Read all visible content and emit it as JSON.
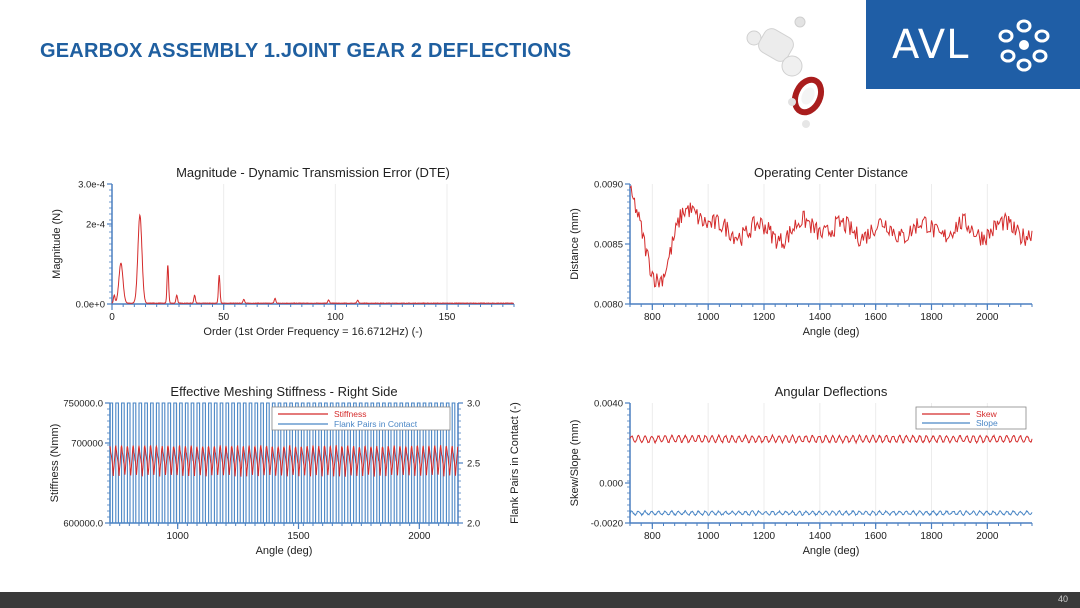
{
  "slide": {
    "title": "GEARBOX ASSEMBLY 1.JOINT GEAR 2 DEFLECTIONS",
    "logo_text": "AVL",
    "page_number": "40"
  },
  "colors": {
    "brand_blue": "#1f5ea6",
    "title_blue": "#1f5fa0",
    "red": "#d42b2b",
    "blue": "#4a86c5",
    "axis": "#4a7fc1"
  },
  "chart_data": [
    {
      "id": "dte",
      "type": "line",
      "title": "Magnitude - Dynamic Transmission Error (DTE)",
      "xlabel": "Order (1st Order Frequency = 16.6712Hz) (-)",
      "ylabel": "Magnitude (N)",
      "xlim": [
        0,
        180
      ],
      "ylim": [
        0,
        0.0003
      ],
      "xticks": [
        0,
        50,
        100,
        150
      ],
      "xtick_labels": [
        "0",
        "50",
        "100",
        "150"
      ],
      "yticks": [
        0,
        0.0002,
        0.0003
      ],
      "ytick_labels": [
        "0.0e+0",
        "2e-4",
        "3.0e-4"
      ],
      "peaks": [
        {
          "x": 1,
          "y": 2e-05
        },
        {
          "x": 4,
          "y": 0.0001
        },
        {
          "x": 12.5,
          "y": 0.00022
        },
        {
          "x": 25,
          "y": 9.5e-05
        },
        {
          "x": 29,
          "y": 2e-05
        },
        {
          "x": 37,
          "y": 2e-05
        },
        {
          "x": 48,
          "y": 7e-05
        },
        {
          "x": 59,
          "y": 1e-05
        },
        {
          "x": 73,
          "y": 1.2e-05
        },
        {
          "x": 97,
          "y": 8e-06
        },
        {
          "x": 110,
          "y": 7e-06
        }
      ]
    },
    {
      "id": "ocd",
      "type": "line",
      "title": "Operating Center Distance",
      "xlabel": "Angle (deg)",
      "ylabel": "Distance (mm)",
      "xlim": [
        720,
        2160
      ],
      "ylim": [
        0.008,
        0.009
      ],
      "xticks": [
        800,
        1000,
        1200,
        1400,
        1600,
        1800,
        2000
      ],
      "xtick_labels": [
        "800",
        "1000",
        "1200",
        "1400",
        "1600",
        "1800",
        "2000"
      ],
      "yticks": [
        0.008,
        0.0085,
        0.009
      ],
      "ytick_labels": [
        "0.0080",
        "0.0085",
        "0.0090"
      ],
      "series": [
        {
          "name": "Distance",
          "mean": 0.00862,
          "start": 0.00892,
          "min": 0.00812,
          "noise": 0.00012
        }
      ]
    },
    {
      "id": "stiff",
      "type": "line",
      "title": "Effective Meshing Stiffness - Right Side",
      "xlabel": "Angle (deg)",
      "ylabel": "Stiffness (Nmm)",
      "y2label": "Flank Pairs in Contact (-)",
      "xlim": [
        720,
        2160
      ],
      "ylim": [
        600000,
        750000
      ],
      "y2lim": [
        2.0,
        3.0
      ],
      "xticks": [
        1000,
        1500,
        2000
      ],
      "xtick_labels": [
        "1000",
        "1500",
        "2000"
      ],
      "yticks": [
        600000,
        700000,
        750000
      ],
      "ytick_labels": [
        "600000.0",
        "700000",
        "750000.0"
      ],
      "y2ticks": [
        2.0,
        2.5,
        3.0
      ],
      "y2tick_labels": [
        "2.0",
        "2.5",
        "3.0"
      ],
      "legend": [
        "Stiffness",
        "Flank Pairs in Contact"
      ],
      "series": [
        {
          "name": "Stiffness",
          "max": 700000,
          "min": 658000,
          "tooth_period_deg": 24
        },
        {
          "name": "Flank Pairs in Contact",
          "values": [
            2.0,
            3.0
          ],
          "tooth_period_deg": 24
        }
      ]
    },
    {
      "id": "ang",
      "type": "line",
      "title": "Angular Deflections",
      "xlabel": "Angle (deg)",
      "ylabel": "Skew/Slope (mm)",
      "xlim": [
        720,
        2160
      ],
      "ylim": [
        -0.002,
        0.004
      ],
      "xticks": [
        800,
        1000,
        1200,
        1400,
        1600,
        1800,
        2000
      ],
      "xtick_labels": [
        "800",
        "1000",
        "1200",
        "1400",
        "1600",
        "1800",
        "2000"
      ],
      "yticks": [
        -0.002,
        0,
        0.004
      ],
      "ytick_labels": [
        "-0.0020",
        "0.000",
        "0.0040"
      ],
      "legend": [
        "Skew",
        "Slope"
      ],
      "series": [
        {
          "name": "Skew",
          "mean": 0.0022,
          "amplitude": 0.00018
        },
        {
          "name": "Slope",
          "mean": -0.0015,
          "amplitude": 9e-05
        }
      ]
    }
  ]
}
